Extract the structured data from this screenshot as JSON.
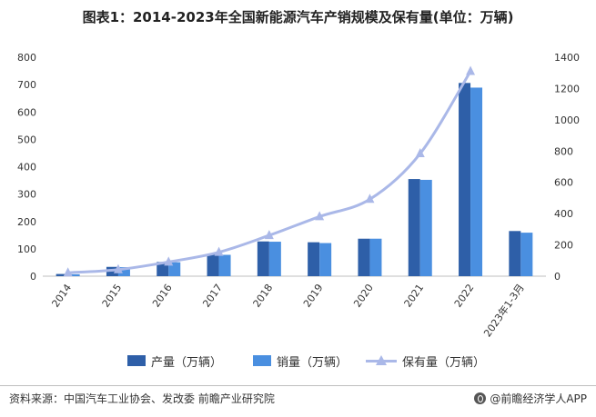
{
  "title": "图表1：2014-2023年全国新能源汽车产销规模及保有量(单位：万辆)",
  "legend": {
    "production": "产量（万辆）",
    "sales": "销量（万辆）",
    "ownership": "保有量（万辆）"
  },
  "source": "资料来源：中国汽车工业协会、发改委 前瞻产业研究院",
  "brand": "@前瞻经济学人APP",
  "colors": {
    "production": "#2e5fa8",
    "sales": "#4a8fe0",
    "ownership": "#aab8e8"
  },
  "chart_data": {
    "type": "bar",
    "categories": [
      "2014",
      "2015",
      "2016",
      "2017",
      "2018",
      "2019",
      "2020",
      "2021",
      "2022",
      "2023年1-3月"
    ],
    "series": [
      {
        "name": "产量（万辆）",
        "type": "bar",
        "axis": "left",
        "values": [
          8,
          34,
          52,
          79,
          127,
          124,
          137,
          355,
          706,
          165
        ]
      },
      {
        "name": "销量（万辆）",
        "type": "bar",
        "axis": "left",
        "values": [
          7,
          33,
          51,
          78,
          126,
          121,
          137,
          352,
          689,
          159
        ]
      },
      {
        "name": "保有量（万辆）",
        "type": "line",
        "axis": "right",
        "values": [
          22,
          42,
          91,
          153,
          261,
          381,
          492,
          784,
          1310,
          null
        ]
      }
    ],
    "y_left": {
      "min": 0,
      "max": 800,
      "ticks": [
        0,
        100,
        200,
        300,
        400,
        500,
        600,
        700,
        800
      ]
    },
    "y_right": {
      "min": 0,
      "max": 1400,
      "ticks": [
        0,
        200,
        400,
        600,
        800,
        1000,
        1200,
        1400
      ]
    },
    "grid": false,
    "legend_position": "bottom"
  }
}
